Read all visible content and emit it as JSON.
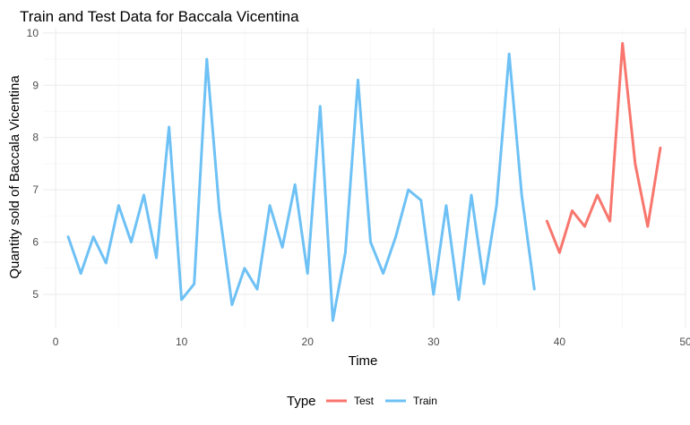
{
  "chart_data": {
    "type": "line",
    "title": "Train and Test Data for Baccala Vicentina",
    "xlabel": "Time",
    "ylabel": "Quantity sold of Baccala Vicentina",
    "xlim": [
      -1,
      50
    ],
    "ylim": [
      4.35,
      10.1
    ],
    "x_ticks": [
      0,
      10,
      20,
      30,
      40,
      50
    ],
    "y_ticks": [
      5,
      6,
      7,
      8,
      9,
      10
    ],
    "x_minor": [
      5,
      15,
      25,
      35,
      45
    ],
    "y_minor": [
      5.5,
      6.5,
      7.5,
      8.5,
      9.5
    ],
    "grid": true,
    "legend": {
      "title": "Type",
      "position": "bottom"
    },
    "series": [
      {
        "name": "Test",
        "color": "#F8766D",
        "x": [
          39,
          40,
          41,
          42,
          43,
          44,
          45,
          46,
          47,
          48
        ],
        "y": [
          6.4,
          5.8,
          6.6,
          6.3,
          6.9,
          6.4,
          9.8,
          7.5,
          6.3,
          7.8
        ]
      },
      {
        "name": "Train",
        "color": "#6EC1F5",
        "x": [
          1,
          2,
          3,
          4,
          5,
          6,
          7,
          8,
          9,
          10,
          11,
          12,
          13,
          14,
          15,
          16,
          17,
          18,
          19,
          20,
          21,
          22,
          23,
          24,
          25,
          26,
          27,
          28,
          29,
          30,
          31,
          32,
          33,
          34,
          35,
          36,
          37,
          38
        ],
        "y": [
          6.1,
          5.4,
          6.1,
          5.6,
          6.7,
          6.0,
          6.9,
          5.7,
          8.2,
          4.9,
          5.2,
          9.5,
          6.6,
          4.8,
          5.5,
          5.1,
          6.7,
          5.9,
          7.1,
          5.4,
          8.6,
          4.5,
          5.8,
          9.1,
          6.0,
          5.4,
          6.1,
          7.0,
          6.8,
          5.0,
          6.7,
          4.9,
          6.9,
          5.2,
          6.7,
          9.6,
          6.9,
          5.1
        ]
      }
    ]
  }
}
